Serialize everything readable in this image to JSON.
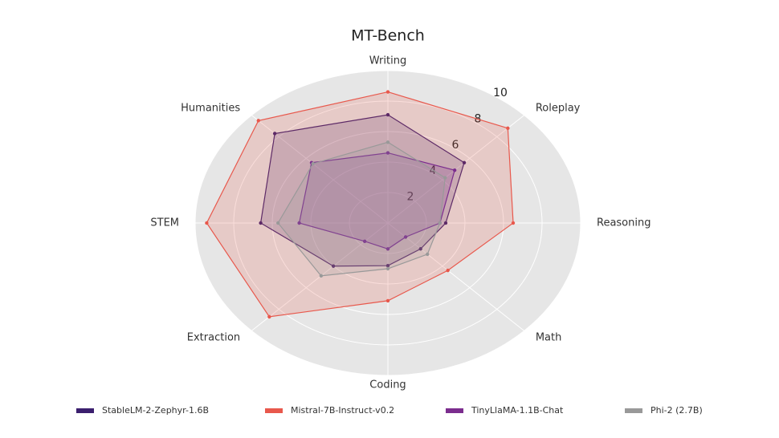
{
  "chart_data": {
    "type": "radar",
    "title": "MT-Bench",
    "categories": [
      "Writing",
      "Roleplay",
      "Reasoning",
      "Math",
      "Coding",
      "Extraction",
      "STEM",
      "Humanities"
    ],
    "ylim": [
      0,
      10
    ],
    "yticks": [
      2,
      4,
      6,
      8,
      10
    ],
    "grid": true,
    "series": [
      {
        "name": "StableLM-2-Zephyr-1.6B",
        "color": "#3b1f6e",
        "values": [
          7.1,
          5.6,
          3.0,
          2.4,
          2.8,
          4.0,
          6.6,
          8.3
        ]
      },
      {
        "name": "Mistral-7B-Instruct-v0.2",
        "color": "#e8584c",
        "values": [
          8.6,
          8.8,
          6.5,
          4.4,
          5.1,
          8.7,
          9.4,
          9.5
        ]
      },
      {
        "name": "TinyLlaMA-1.1B-Chat",
        "color": "#7b2d8e",
        "values": [
          4.6,
          4.9,
          2.7,
          1.3,
          1.7,
          1.7,
          4.6,
          5.6
        ]
      },
      {
        "name": "Phi-2 (2.7B)",
        "color": "#999999",
        "values": [
          5.3,
          4.2,
          2.7,
          2.9,
          3.0,
          4.9,
          5.7,
          5.5
        ]
      }
    ],
    "legend": "bottom"
  }
}
